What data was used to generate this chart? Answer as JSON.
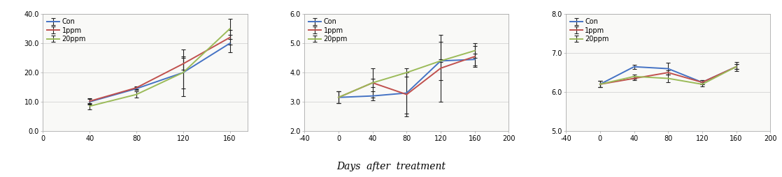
{
  "chart1": {
    "xlim": [
      0,
      175
    ],
    "ylim": [
      0.0,
      40.0
    ],
    "xticks": [
      0,
      40,
      80,
      120,
      160
    ],
    "yticks": [
      0.0,
      10.0,
      20.0,
      30.0,
      40.0
    ],
    "ytick_labels": [
      "0.0",
      "10.0",
      "20.0",
      "30.0",
      "40.0"
    ],
    "x": [
      40,
      80,
      120,
      160
    ],
    "con": [
      10.0,
      14.5,
      20.0,
      30.0
    ],
    "ppm1": [
      10.2,
      14.8,
      23.0,
      32.0
    ],
    "ppm20": [
      8.5,
      12.5,
      20.0,
      35.0
    ],
    "con_err": [
      1.0,
      0.5,
      8.0,
      3.0
    ],
    "ppm1_err": [
      1.0,
      0.5,
      2.0,
      2.5
    ],
    "ppm20_err": [
      1.0,
      1.0,
      5.5,
      3.5
    ]
  },
  "chart2": {
    "xlim": [
      -40,
      200
    ],
    "ylim": [
      2.0,
      6.0
    ],
    "xticks": [
      -40,
      0,
      40,
      80,
      120,
      160,
      200
    ],
    "yticks": [
      2.0,
      3.0,
      4.0,
      5.0,
      6.0
    ],
    "ytick_labels": [
      "2.0",
      "3.0",
      "4.0",
      "5.0",
      "6.0"
    ],
    "x": [
      0,
      40,
      80,
      120,
      160
    ],
    "con": [
      3.15,
      3.2,
      3.3,
      4.4,
      4.45
    ],
    "ppm1": [
      3.15,
      3.65,
      3.25,
      4.15,
      4.55
    ],
    "ppm20": [
      3.15,
      3.65,
      4.0,
      4.4,
      4.75
    ],
    "con_err": [
      0.2,
      0.15,
      0.7,
      0.65,
      0.2
    ],
    "ppm1_err": [
      0.2,
      0.5,
      0.75,
      1.15,
      0.35
    ],
    "ppm20_err": [
      0.2,
      0.15,
      0.15,
      0.05,
      0.25
    ]
  },
  "chart3": {
    "xlim": [
      -40,
      200
    ],
    "ylim": [
      5.0,
      8.0
    ],
    "xticks": [
      -40,
      0,
      40,
      80,
      120,
      160,
      200
    ],
    "yticks": [
      5.0,
      6.0,
      7.0,
      8.0
    ],
    "ytick_labels": [
      "5.0",
      "6.0",
      "7.0",
      "8.0"
    ],
    "x": [
      0,
      40,
      80,
      120,
      160
    ],
    "con": [
      6.2,
      6.65,
      6.6,
      6.25,
      6.65
    ],
    "ppm1": [
      6.2,
      6.35,
      6.5,
      6.25,
      6.65
    ],
    "ppm20": [
      6.2,
      6.4,
      6.35,
      6.2,
      6.65
    ],
    "con_err": [
      0.08,
      0.05,
      0.15,
      0.05,
      0.06
    ],
    "ppm1_err": [
      0.08,
      0.05,
      0.05,
      0.05,
      0.12
    ],
    "ppm20_err": [
      0.08,
      0.05,
      0.1,
      0.05,
      0.06
    ]
  },
  "colors": {
    "con": "#4472c4",
    "ppm1": "#c0504d",
    "ppm20": "#9bbb59"
  },
  "xlabel": "Days  after  treatment",
  "plot_bg": "#f9f9f7",
  "fig_bg": "#ffffff",
  "grid_color": "#d8d8d8",
  "linewidth": 1.4,
  "capsize": 2.5,
  "elinewidth": 0.8,
  "capthick": 0.8,
  "tick_fontsize": 7,
  "legend_fontsize": 7
}
